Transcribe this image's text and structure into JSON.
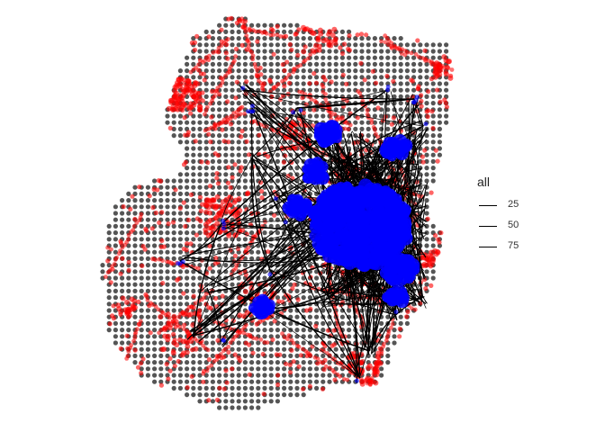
{
  "chart_data": {
    "type": "map-network",
    "legend": {
      "title": "all",
      "placement": "right",
      "entries": [
        {
          "label": "25",
          "value": 25
        },
        {
          "label": "50",
          "value": 50
        },
        {
          "label": "75",
          "value": 75
        }
      ]
    },
    "colors": {
      "grid_points": "#555555",
      "red_nodes": "#ff0000",
      "blue_nodes": "#0000ff",
      "edges": "#000000",
      "background": "#ffffff"
    },
    "axes": "none",
    "grid": false
  }
}
